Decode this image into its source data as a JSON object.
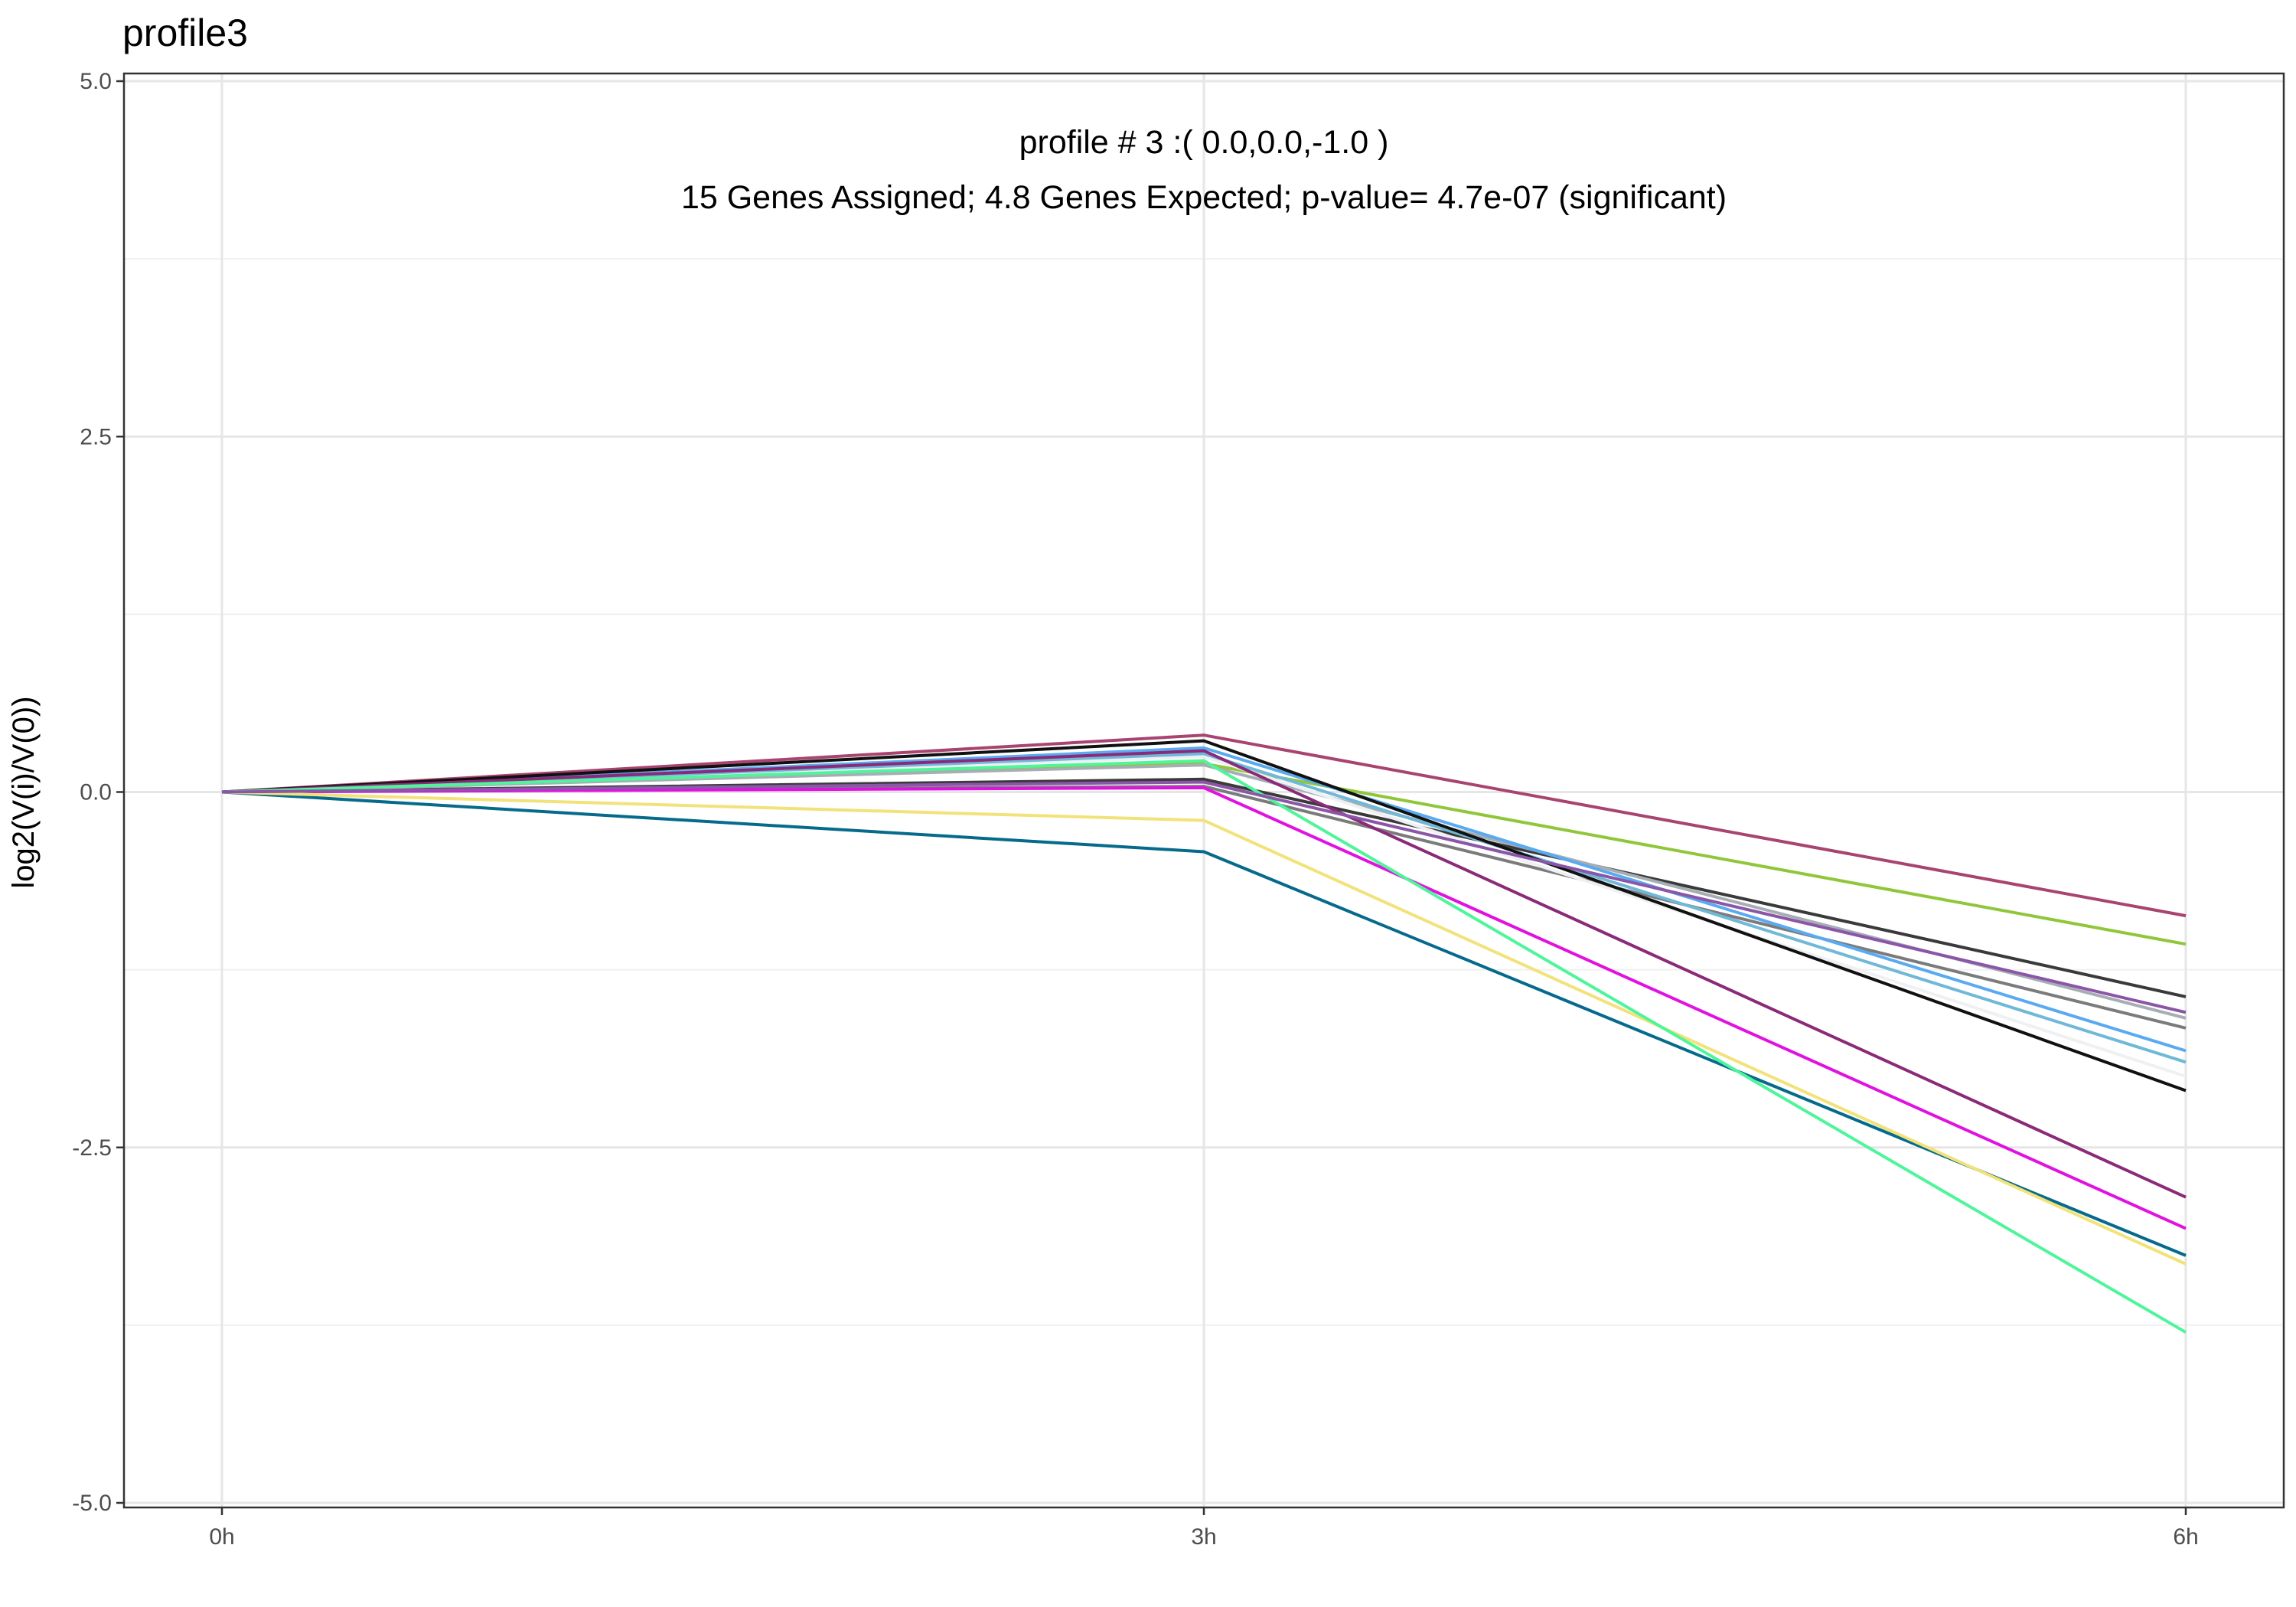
{
  "chart_data": {
    "type": "line",
    "title": "profile3",
    "annotation_line1": "profile # 3 :( 0.0,0.0,-1.0 )",
    "annotation_line2": "15 Genes Assigned; 4.8 Genes Expected; p-value= 4.7e-07 (significant)",
    "xlabel": "",
    "ylabel": "log2(V(i)/V(0))",
    "categories": [
      "0h",
      "3h",
      "6h"
    ],
    "y_ticks": [
      5.0,
      2.5,
      0.0,
      -2.5,
      -5.0
    ],
    "y_tick_labels": [
      "5.0",
      "2.5",
      "0.0",
      "-2.5",
      "-5.0"
    ],
    "ylim": [
      -5.0,
      5.0
    ],
    "grid": true,
    "legend": "none",
    "series": [
      {
        "color": "#a8446f",
        "values": [
          0,
          0.4,
          -0.87
        ]
      },
      {
        "color": "#90c63a",
        "values": [
          0,
          0.2,
          -1.07
        ]
      },
      {
        "color": "#3a3a3a",
        "values": [
          0,
          0.09,
          -1.44
        ]
      },
      {
        "color": "#a6aeb4",
        "values": [
          0,
          0.19,
          -1.59
        ]
      },
      {
        "color": "#7b7b7b",
        "values": [
          0,
          0.04,
          -1.66
        ]
      },
      {
        "color": "#eef0f2",
        "values": [
          0,
          0.25,
          -2.0
        ]
      },
      {
        "color": "#5aaaf0",
        "values": [
          0,
          0.31,
          -1.82
        ]
      },
      {
        "color": "#70b8d8",
        "values": [
          0,
          0.27,
          -1.9
        ]
      },
      {
        "color": "#111111",
        "values": [
          0,
          0.36,
          -2.1
        ]
      },
      {
        "color": "#8a2a78",
        "values": [
          0,
          0.29,
          -2.85
        ]
      },
      {
        "color": "#e012e0",
        "values": [
          0,
          0.03,
          -3.07
        ]
      },
      {
        "color": "#066a8c",
        "values": [
          0,
          -0.42,
          -3.26
        ]
      },
      {
        "color": "#f2e27a",
        "values": [
          0,
          -0.2,
          -3.32
        ]
      },
      {
        "color": "#4ef59a",
        "values": [
          0,
          0.22,
          -3.8
        ]
      },
      {
        "color": "#8b55a8",
        "values": [
          0,
          0.07,
          -1.55
        ]
      }
    ]
  }
}
